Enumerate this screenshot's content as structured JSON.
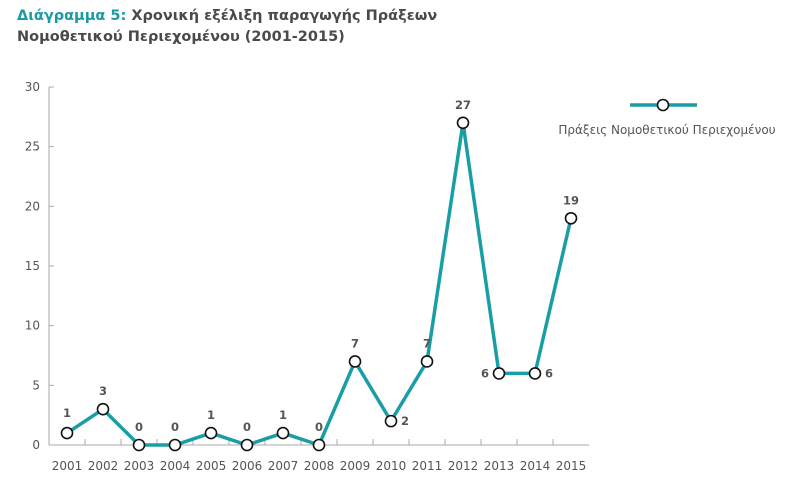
{
  "title": {
    "lead": "Διάγραμμα 5:",
    "text": "Χρονική εξέλιξη παραγωγής Πράξεων Νομοθετικού Περιεχομένου (2001-2015)"
  },
  "colors": {
    "series": "#1a9ea6",
    "title_accent": "#1b9aa5"
  },
  "chart_data": {
    "type": "line",
    "title": "Διάγραμμα 5: Χρονική εξέλιξη παραγωγής Πράξεων Νομοθετικού Περιεχομένου (2001-2015)",
    "categories": [
      "2001",
      "2002",
      "2003",
      "2004",
      "2005",
      "2006",
      "2007",
      "2008",
      "2009",
      "2010",
      "2011",
      "2012",
      "2013",
      "2014",
      "2015"
    ],
    "series": [
      {
        "name": "Πράξεις Νομοθετικού Περιεχομένου",
        "values": [
          1,
          3,
          0,
          0,
          1,
          0,
          1,
          0,
          7,
          2,
          7,
          27,
          6,
          6,
          19
        ]
      }
    ],
    "yticks": [
      0,
      5,
      10,
      15,
      20,
      25,
      30
    ],
    "ylim": [
      0,
      30
    ],
    "xlabel": "",
    "ylabel": "",
    "grid": false,
    "legend": "top-right"
  }
}
